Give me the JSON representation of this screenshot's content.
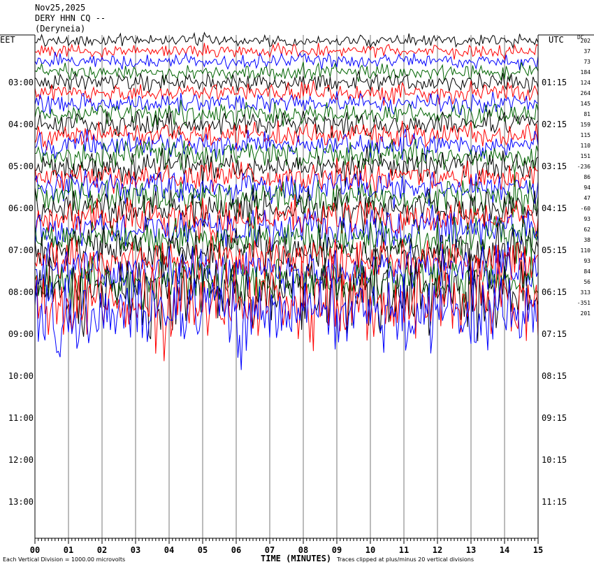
{
  "header": {
    "date": "Nov25,2025",
    "station": "DERY HHN CQ --",
    "location": "(Deryneia)"
  },
  "chart_data": {
    "type": "line",
    "title": "DERY HHN CQ --",
    "left_timezone": "EET",
    "right_timezone": "UTC",
    "dc_header": "DC",
    "xlabel": "TIME (MINUTES)",
    "x_ticks": [
      "00",
      "01",
      "02",
      "03",
      "04",
      "05",
      "06",
      "07",
      "08",
      "09",
      "10",
      "11",
      "12",
      "13",
      "14",
      "15"
    ],
    "xlim": [
      0,
      15
    ],
    "left_hour_labels": [
      "03:00",
      "04:00",
      "05:00",
      "06:00",
      "07:00",
      "08:00",
      "09:00",
      "10:00",
      "11:00",
      "12:00",
      "13:00"
    ],
    "right_hour_labels": [
      "01:15",
      "02:15",
      "03:15",
      "04:15",
      "05:15",
      "06:15",
      "07:15",
      "08:15",
      "09:15",
      "10:15",
      "11:15"
    ],
    "dc_offsets": [
      "202",
      "37",
      "73",
      "184",
      "124",
      "264",
      "145",
      "81",
      "159",
      "115",
      "110",
      "151",
      "-236",
      "86",
      "94",
      "47",
      "-60",
      "93",
      "62",
      "38",
      "110",
      "93",
      "84",
      "56",
      "313",
      "-351",
      "201"
    ],
    "trace_colors": [
      "#000000",
      "#ff0000",
      "#0000ff",
      "#006400"
    ],
    "scale_note": "Each Vertical Division = 1000.00 microvolts",
    "clip_note": "Traces clipped at plus/minus 20 vertical divisions"
  }
}
